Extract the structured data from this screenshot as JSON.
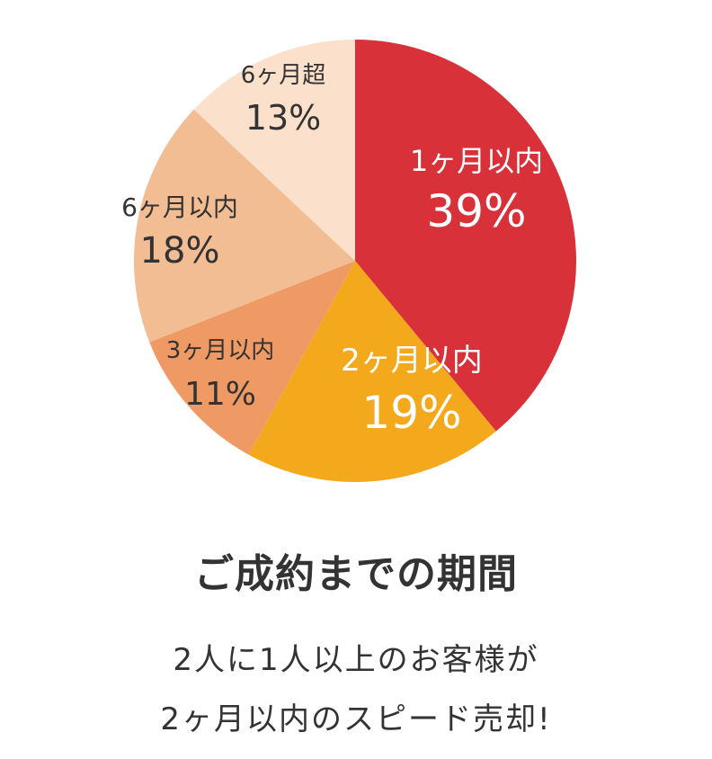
{
  "chart_data": {
    "type": "pie",
    "categories": [
      "1ヶ月以内",
      "2ヶ月以内",
      "3ヶ月以内",
      "6ヶ月以内",
      "6ヶ月超"
    ],
    "values": [
      39,
      19,
      11,
      18,
      13
    ],
    "value_labels": [
      "39%",
      "19%",
      "11%",
      "18%",
      "13%"
    ],
    "colors": [
      "#d8313a",
      "#f4a81c",
      "#ef9a64",
      "#f3bd94",
      "#fbe1cc"
    ],
    "label_colors": [
      "#ffffff",
      "#ffffff",
      "#333333",
      "#333333",
      "#333333"
    ],
    "start": "12 o'clock",
    "direction": "clockwise"
  },
  "caption": {
    "title": "ご成約までの期間",
    "line1": "2人に1人以上のお客様が",
    "line2": "2ヶ月以内のスピード売却!"
  }
}
